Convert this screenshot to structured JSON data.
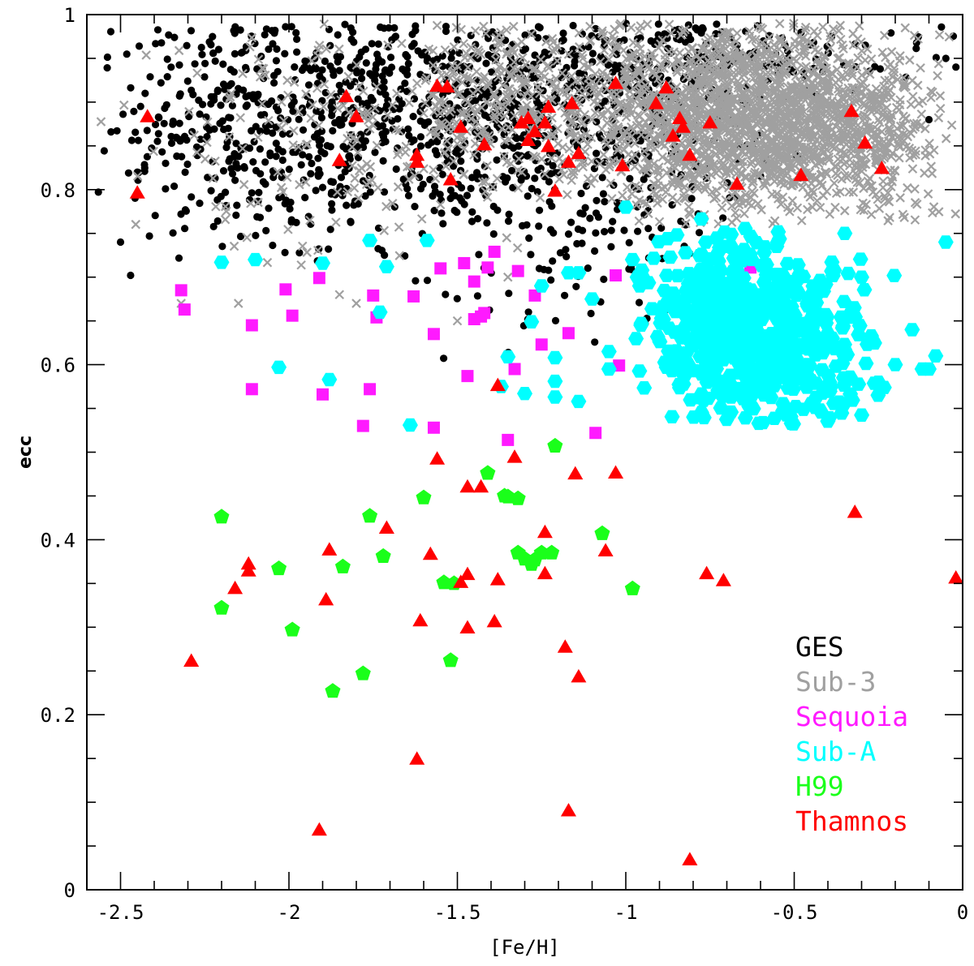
{
  "chart_data": {
    "type": "scatter",
    "title": "",
    "xlabel": "[Fe/H]",
    "ylabel": "ecc",
    "xlim": [
      -2.6,
      0
    ],
    "ylim": [
      0,
      1
    ],
    "x_ticks": [
      -2.5,
      -2,
      -1.5,
      -1,
      -0.5,
      0
    ],
    "x_tick_labels": [
      "-2.5",
      "-2",
      "-1.5",
      "-1",
      "-0.5",
      "0"
    ],
    "y_ticks": [
      0,
      0.2,
      0.4,
      0.6,
      0.8,
      1
    ],
    "y_tick_labels": [
      "0",
      "0.2",
      "0.4",
      "0.6",
      "0.8",
      "1"
    ],
    "grid": false,
    "legend_position": "bottom-right",
    "series": [
      {
        "name": "GES",
        "color": "#000000",
        "marker": "circle",
        "clouds": [
          {
            "center": [
              -1.45,
              0.88
            ],
            "spread": [
              0.45,
              0.07
            ],
            "count": 900,
            "xr": [
              -2.58,
              -0.45
            ],
            "yr": [
              0.68,
              0.99
            ]
          },
          {
            "center": [
              -2.1,
              0.87
            ],
            "spread": [
              0.25,
              0.07
            ],
            "count": 250,
            "xr": [
              -2.58,
              -1.7
            ],
            "yr": [
              0.72,
              0.99
            ]
          },
          {
            "center": [
              -0.8,
              0.95
            ],
            "spread": [
              0.35,
              0.03
            ],
            "count": 160,
            "xr": [
              -1.3,
              -0.02
            ],
            "yr": [
              0.9,
              0.99
            ]
          },
          {
            "center": [
              -1.1,
              0.7
            ],
            "spread": [
              0.3,
              0.05
            ],
            "count": 60,
            "xr": [
              -1.6,
              -0.8
            ],
            "yr": [
              0.6,
              0.8
            ]
          }
        ],
        "points": [
          [
            -0.05,
            0.95
          ],
          [
            -0.02,
            0.94
          ],
          [
            -0.1,
            0.88
          ],
          [
            -2.5,
            0.74
          ],
          [
            -2.45,
            0.82
          ]
        ]
      },
      {
        "name": "Sub-3",
        "color": "#a0a0a0",
        "marker": "cross",
        "clouds": [
          {
            "center": [
              -0.6,
              0.88
            ],
            "spread": [
              0.22,
              0.055
            ],
            "count": 1700,
            "xr": [
              -1.05,
              -0.15
            ],
            "yr": [
              0.76,
              0.99
            ]
          },
          {
            "center": [
              -1.15,
              0.9
            ],
            "spread": [
              0.3,
              0.05
            ],
            "count": 500,
            "xr": [
              -1.6,
              -0.7
            ],
            "yr": [
              0.78,
              0.99
            ]
          },
          {
            "center": [
              -1.8,
              0.86
            ],
            "spread": [
              0.35,
              0.07
            ],
            "count": 200,
            "xr": [
              -2.58,
              -1.3
            ],
            "yr": [
              0.7,
              0.99
            ]
          },
          {
            "center": [
              -0.2,
              0.87
            ],
            "spread": [
              0.1,
              0.06
            ],
            "count": 150,
            "xr": [
              -0.35,
              -0.02
            ],
            "yr": [
              0.76,
              0.98
            ]
          }
        ],
        "points": [
          [
            -2.32,
            0.67
          ],
          [
            -1.85,
            0.68
          ],
          [
            -1.35,
            0.7
          ],
          [
            -1.5,
            0.65
          ],
          [
            -1.8,
            0.67
          ],
          [
            -2.15,
            0.67
          ]
        ]
      },
      {
        "name": "Sequoia",
        "color": "#ff1aff",
        "marker": "square",
        "points": [
          [
            -2.32,
            0.685
          ],
          [
            -2.31,
            0.663
          ],
          [
            -2.11,
            0.645
          ],
          [
            -2.11,
            0.572
          ],
          [
            -2.01,
            0.686
          ],
          [
            -1.99,
            0.656
          ],
          [
            -1.91,
            0.699
          ],
          [
            -1.9,
            0.566
          ],
          [
            -1.78,
            0.53
          ],
          [
            -1.76,
            0.572
          ],
          [
            -1.74,
            0.654
          ],
          [
            -1.75,
            0.679
          ],
          [
            -1.63,
            0.678
          ],
          [
            -1.57,
            0.635
          ],
          [
            -1.57,
            0.528
          ],
          [
            -1.55,
            0.71
          ],
          [
            -1.48,
            0.716
          ],
          [
            -1.47,
            0.587
          ],
          [
            -1.45,
            0.695
          ],
          [
            -1.45,
            0.652
          ],
          [
            -1.43,
            0.655
          ],
          [
            -1.42,
            0.659
          ],
          [
            -1.41,
            0.711
          ],
          [
            -1.39,
            0.729
          ],
          [
            -1.35,
            0.514
          ],
          [
            -1.33,
            0.595
          ],
          [
            -1.32,
            0.707
          ],
          [
            -1.27,
            0.679
          ],
          [
            -1.25,
            0.623
          ],
          [
            -1.17,
            0.636
          ],
          [
            -1.09,
            0.522
          ],
          [
            -1.03,
            0.702
          ],
          [
            -1.02,
            0.599
          ],
          [
            -0.63,
            0.711
          ]
        ]
      },
      {
        "name": "Sub-A",
        "color": "#00ffff",
        "marker": "hexagon",
        "clouds": [
          {
            "center": [
              -0.6,
              0.615
            ],
            "spread": [
              0.16,
              0.05
            ],
            "count": 520,
            "xr": [
              -0.98,
              -0.2
            ],
            "yr": [
              0.53,
              0.77
            ]
          },
          {
            "center": [
              -0.72,
              0.69
            ],
            "spread": [
              0.12,
              0.035
            ],
            "count": 110,
            "xr": [
              -0.98,
              -0.4
            ],
            "yr": [
              0.63,
              0.78
            ]
          }
        ],
        "points": [
          [
            -2.2,
            0.717
          ],
          [
            -2.1,
            0.72
          ],
          [
            -2.03,
            0.597
          ],
          [
            -1.9,
            0.716
          ],
          [
            -1.88,
            0.583
          ],
          [
            -1.76,
            0.742
          ],
          [
            -1.71,
            0.712
          ],
          [
            -1.73,
            0.66
          ],
          [
            -1.64,
            0.531
          ],
          [
            -1.59,
            0.742
          ],
          [
            -1.37,
            0.575
          ],
          [
            -1.35,
            0.609
          ],
          [
            -1.3,
            0.567
          ],
          [
            -1.28,
            0.649
          ],
          [
            -1.25,
            0.69
          ],
          [
            -1.21,
            0.608
          ],
          [
            -1.21,
            0.581
          ],
          [
            -1.21,
            0.563
          ],
          [
            -1.17,
            0.705
          ],
          [
            -1.14,
            0.705
          ],
          [
            -1.14,
            0.558
          ],
          [
            -1.1,
            0.675
          ],
          [
            -1.05,
            0.615
          ],
          [
            -1.05,
            0.595
          ],
          [
            -1.0,
            0.78
          ],
          [
            -0.98,
            0.72
          ],
          [
            -0.2,
            0.6
          ],
          [
            -0.15,
            0.64
          ],
          [
            -0.1,
            0.595
          ],
          [
            -0.08,
            0.61
          ],
          [
            -0.25,
            0.58
          ],
          [
            -0.3,
            0.7
          ],
          [
            -0.35,
            0.75
          ],
          [
            -0.05,
            0.74
          ],
          [
            -0.12,
            0.595
          ]
        ]
      },
      {
        "name": "H99",
        "color": "#1aff1a",
        "marker": "pentagon",
        "points": [
          [
            -2.2,
            0.426
          ],
          [
            -2.2,
            0.322
          ],
          [
            -2.03,
            0.367
          ],
          [
            -1.99,
            0.297
          ],
          [
            -1.87,
            0.227
          ],
          [
            -1.84,
            0.369
          ],
          [
            -1.78,
            0.247
          ],
          [
            -1.76,
            0.427
          ],
          [
            -1.72,
            0.381
          ],
          [
            -1.6,
            0.448
          ],
          [
            -1.54,
            0.351
          ],
          [
            -1.52,
            0.262
          ],
          [
            -1.51,
            0.35
          ],
          [
            -1.41,
            0.476
          ],
          [
            -1.36,
            0.45
          ],
          [
            -1.35,
            0.449
          ],
          [
            -1.32,
            0.385
          ],
          [
            -1.32,
            0.447
          ],
          [
            -1.3,
            0.378
          ],
          [
            -1.28,
            0.372
          ],
          [
            -1.27,
            0.377
          ],
          [
            -1.25,
            0.385
          ],
          [
            -1.22,
            0.385
          ],
          [
            -1.21,
            0.507
          ],
          [
            -1.07,
            0.407
          ],
          [
            -0.98,
            0.344
          ]
        ]
      },
      {
        "name": "Thamnos",
        "color": "#ff0000",
        "marker": "triangle",
        "points": [
          [
            -2.45,
            0.795
          ],
          [
            -2.42,
            0.882
          ],
          [
            -2.29,
            0.26
          ],
          [
            -2.16,
            0.343
          ],
          [
            -2.12,
            0.363
          ],
          [
            -2.12,
            0.371
          ],
          [
            -1.91,
            0.067
          ],
          [
            -1.89,
            0.33
          ],
          [
            -1.88,
            0.387
          ],
          [
            -1.85,
            0.832
          ],
          [
            -1.83,
            0.905
          ],
          [
            -1.8,
            0.882
          ],
          [
            -1.71,
            0.412
          ],
          [
            -1.62,
            0.148
          ],
          [
            -1.62,
            0.83
          ],
          [
            -1.62,
            0.838
          ],
          [
            -1.61,
            0.306
          ],
          [
            -1.58,
            0.382
          ],
          [
            -1.56,
            0.917
          ],
          [
            -1.56,
            0.491
          ],
          [
            -1.53,
            0.916
          ],
          [
            -1.52,
            0.81
          ],
          [
            -1.49,
            0.35
          ],
          [
            -1.49,
            0.87
          ],
          [
            -1.47,
            0.298
          ],
          [
            -1.47,
            0.359
          ],
          [
            -1.47,
            0.459
          ],
          [
            -1.43,
            0.459
          ],
          [
            -1.42,
            0.85
          ],
          [
            -1.39,
            0.305
          ],
          [
            -1.38,
            0.353
          ],
          [
            -1.38,
            0.575
          ],
          [
            -1.33,
            0.493
          ],
          [
            -1.31,
            0.875
          ],
          [
            -1.29,
            0.88
          ],
          [
            -1.29,
            0.855
          ],
          [
            -1.27,
            0.865
          ],
          [
            -1.24,
            0.875
          ],
          [
            -1.24,
            0.36
          ],
          [
            -1.24,
            0.407
          ],
          [
            -1.23,
            0.893
          ],
          [
            -1.23,
            0.848
          ],
          [
            -1.21,
            0.797
          ],
          [
            -1.18,
            0.276
          ],
          [
            -1.17,
            0.089
          ],
          [
            -1.17,
            0.83
          ],
          [
            -1.16,
            0.897
          ],
          [
            -1.15,
            0.474
          ],
          [
            -1.14,
            0.242
          ],
          [
            -1.14,
            0.84
          ],
          [
            -1.06,
            0.386
          ],
          [
            -1.03,
            0.475
          ],
          [
            -1.03,
            0.92
          ],
          [
            -1.01,
            0.826
          ],
          [
            -0.91,
            0.897
          ],
          [
            -0.88,
            0.915
          ],
          [
            -0.86,
            0.86
          ],
          [
            -0.84,
            0.88
          ],
          [
            -0.83,
            0.87
          ],
          [
            -0.81,
            0.838
          ],
          [
            -0.81,
            0.033
          ],
          [
            -0.76,
            0.36
          ],
          [
            -0.75,
            0.875
          ],
          [
            -0.71,
            0.352
          ],
          [
            -0.67,
            0.805
          ],
          [
            -0.48,
            0.815
          ],
          [
            -0.33,
            0.888
          ],
          [
            -0.32,
            0.43
          ],
          [
            -0.29,
            0.852
          ],
          [
            -0.24,
            0.823
          ],
          [
            -0.02,
            0.355
          ]
        ]
      }
    ]
  }
}
